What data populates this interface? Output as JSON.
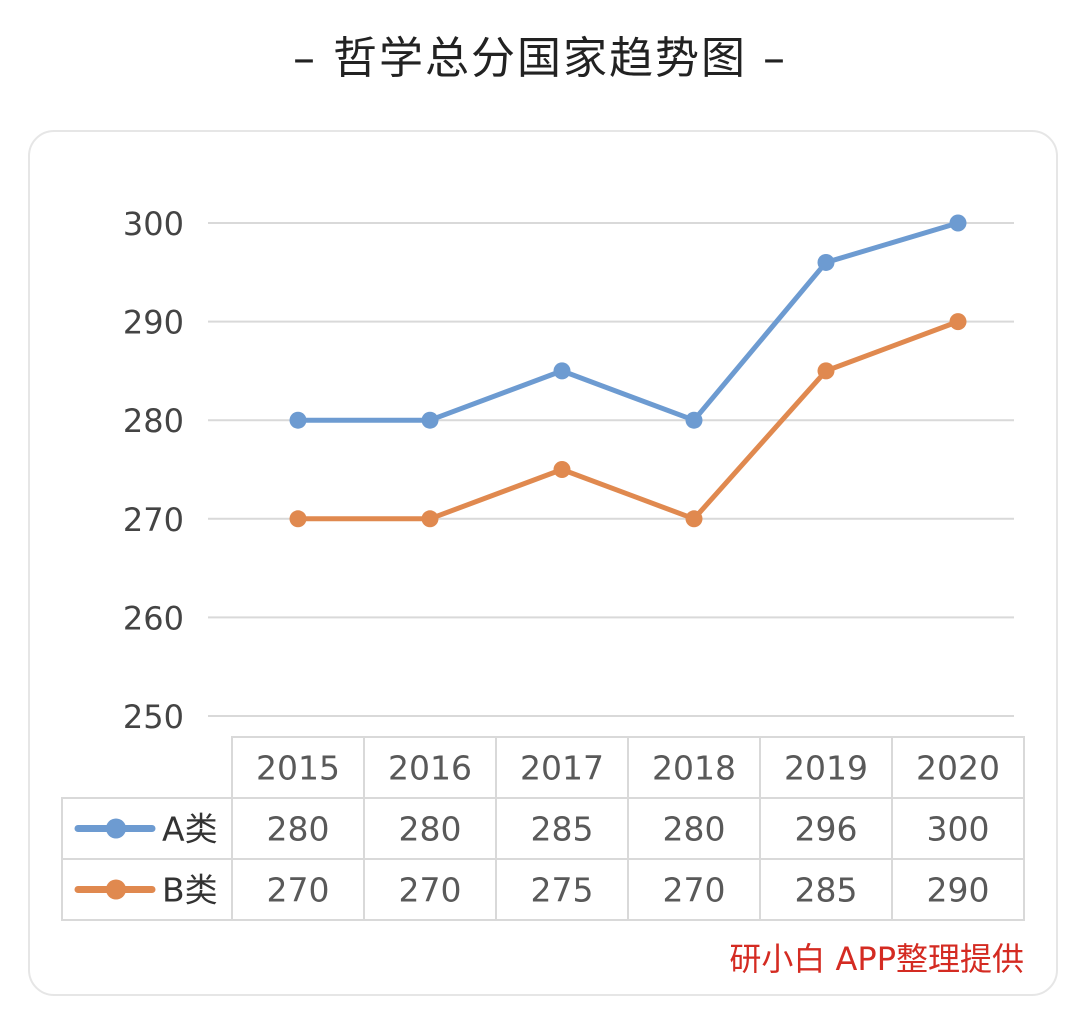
{
  "title": "– 哲学总分国家趋势图 –",
  "credit": "研小白 APP整理提供",
  "chart_data": {
    "type": "line",
    "title": "哲学总分国家趋势图",
    "categories": [
      "2015",
      "2016",
      "2017",
      "2018",
      "2019",
      "2020"
    ],
    "ylim": [
      250,
      300
    ],
    "yticks": [
      300,
      290,
      280,
      270,
      260,
      250
    ],
    "grid": true,
    "series": [
      {
        "name": "A类",
        "color": "#6d9bd1",
        "values": [
          280,
          280,
          285,
          280,
          296,
          300
        ]
      },
      {
        "name": "B类",
        "color": "#e0894f",
        "values": [
          270,
          270,
          275,
          270,
          285,
          290
        ]
      }
    ],
    "data_table": true
  }
}
